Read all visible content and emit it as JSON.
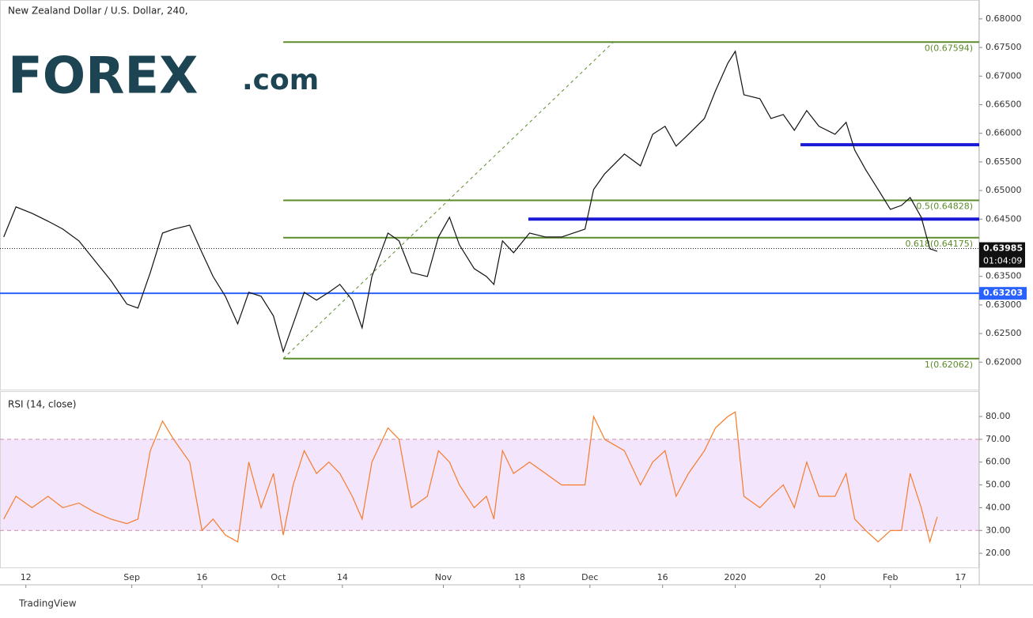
{
  "chart_data": [
    {
      "type": "line",
      "title": "New Zealand Dollar / U.S. Dollar, 240,",
      "color": "#111111",
      "x": [
        -17,
        -7,
        6,
        19,
        31,
        44,
        57,
        70,
        83,
        92,
        102,
        112,
        121,
        134,
        144,
        153,
        163,
        173,
        182,
        192,
        202,
        210,
        218,
        227,
        237,
        247,
        256,
        266,
        274,
        282,
        295,
        304,
        314,
        327,
        336,
        345,
        353,
        365,
        375,
        381,
        388,
        397,
        410,
        423,
        436,
        455,
        462,
        471,
        487,
        500,
        510,
        520,
        529,
        539,
        552,
        561,
        571,
        577,
        584,
        597,
        606,
        616,
        625,
        635,
        645,
        658,
        667,
        674,
        683,
        693,
        703,
        712,
        719,
        728,
        735,
        741
      ],
      "values": [
        0.64188,
        0.64713,
        0.64602,
        0.64464,
        0.64326,
        0.64119,
        0.63773,
        0.63428,
        0.63014,
        0.62945,
        0.63566,
        0.64257,
        0.64326,
        0.64395,
        0.63912,
        0.63497,
        0.63152,
        0.62669,
        0.63221,
        0.63152,
        0.62807,
        0.62185,
        0.62669,
        0.63221,
        0.63083,
        0.63221,
        0.63359,
        0.63083,
        0.626,
        0.63497,
        0.64257,
        0.64119,
        0.63566,
        0.63497,
        0.64188,
        0.64533,
        0.6405,
        0.63635,
        0.63497,
        0.63359,
        0.64119,
        0.63912,
        0.64257,
        0.64188,
        0.64188,
        0.64326,
        0.65017,
        0.65293,
        0.65638,
        0.65431,
        0.65983,
        0.66122,
        0.65776,
        0.65983,
        0.6626,
        0.66743,
        0.67227,
        0.67434,
        0.66674,
        0.66605,
        0.6626,
        0.66329,
        0.66052,
        0.66398,
        0.66122,
        0.65983,
        0.66191,
        0.65707,
        0.65362,
        0.65017,
        0.64671,
        0.6474,
        0.64878,
        0.64533,
        0.63981,
        0.63939
      ],
      "xlim": [
        -20,
        775.1
      ],
      "xticks": [
        {
          "value": 1,
          "label": "12"
        },
        {
          "value": 87,
          "label": "Sep"
        },
        {
          "value": 144,
          "label": "16"
        },
        {
          "value": 206,
          "label": "Oct"
        },
        {
          "value": 258,
          "label": "14"
        },
        {
          "value": 340,
          "label": "Nov"
        },
        {
          "value": 402,
          "label": "18"
        },
        {
          "value": 459,
          "label": "Dec"
        },
        {
          "value": 518,
          "label": "16"
        },
        {
          "value": 577,
          "label": "2020"
        },
        {
          "value": 646,
          "label": "20"
        },
        {
          "value": 703,
          "label": "Feb"
        },
        {
          "value": 760,
          "label": "17"
        }
      ],
      "ylim": [
        0.6152,
        0.6833
      ],
      "yticks": [
        {
          "value": 0.62,
          "label": "0.62000"
        },
        {
          "value": 0.625,
          "label": "0.62500"
        },
        {
          "value": 0.63,
          "label": "0.63000"
        },
        {
          "value": 0.635,
          "label": "0.63500"
        },
        {
          "value": 0.64,
          "label": "0.64000"
        },
        {
          "value": 0.645,
          "label": "0.64500"
        },
        {
          "value": 0.65,
          "label": "0.65000"
        },
        {
          "value": 0.655,
          "label": "0.65500"
        },
        {
          "value": 0.66,
          "label": "0.66000"
        },
        {
          "value": 0.665,
          "label": "0.66500"
        },
        {
          "value": 0.67,
          "label": "0.67000"
        },
        {
          "value": 0.675,
          "label": "0.67500"
        },
        {
          "value": 0.68,
          "label": "0.68000"
        }
      ],
      "grid": false,
      "fib_start": 210,
      "fib_color": "#5b8c2a",
      "fib_levels": [
        {
          "value": 0.67594,
          "label": "0(0.67594)"
        },
        {
          "value": 0.64828,
          "label": "0.5(0.64828)"
        },
        {
          "value": 0.64175,
          "label": "0.618(0.64175)"
        },
        {
          "value": 0.62062,
          "label": "1(0.62062)"
        }
      ],
      "trendline": {
        "x": [
          210,
          478
        ],
        "y": [
          0.62062,
          0.67594
        ]
      },
      "support": {
        "value": 0.63203,
        "label": "0.63203",
        "color": "#2962ff"
      },
      "resistance": [
        {
          "value": 0.645,
          "x": 409
        },
        {
          "value": 0.658,
          "x": 630
        }
      ],
      "resistance_color": "#1a1ad6",
      "last_price": {
        "value": 0.63985,
        "label": "0.63985",
        "timer": "01:04:09"
      }
    },
    {
      "type": "line",
      "title": "RSI (14, close)",
      "color": "#f57c2c",
      "x": [
        -17,
        -7,
        6,
        19,
        31,
        44,
        57,
        70,
        83,
        92,
        102,
        112,
        121,
        134,
        144,
        153,
        163,
        173,
        182,
        192,
        202,
        210,
        218,
        227,
        237,
        247,
        256,
        266,
        274,
        282,
        295,
        304,
        314,
        327,
        336,
        345,
        353,
        365,
        375,
        381,
        388,
        397,
        410,
        423,
        436,
        455,
        462,
        471,
        487,
        500,
        510,
        520,
        529,
        539,
        552,
        561,
        571,
        577,
        584,
        597,
        606,
        616,
        625,
        635,
        645,
        658,
        667,
        674,
        683,
        693,
        703,
        712,
        719,
        728,
        735,
        741
      ],
      "values": [
        35,
        45,
        40,
        45,
        40,
        42,
        38,
        35,
        33,
        35,
        65,
        78,
        70,
        60,
        30,
        35,
        28,
        25,
        60,
        40,
        55,
        28,
        50,
        65,
        55,
        60,
        55,
        45,
        35,
        60,
        75,
        70,
        40,
        45,
        65,
        60,
        50,
        40,
        45,
        35,
        65,
        55,
        60,
        55,
        50,
        50,
        80,
        70,
        65,
        50,
        60,
        65,
        45,
        55,
        65,
        75,
        80,
        82,
        45,
        40,
        45,
        50,
        40,
        60,
        45,
        45,
        55,
        35,
        30,
        25,
        30,
        30,
        55,
        40,
        25,
        36
      ],
      "xlim": [
        -20,
        775.1
      ],
      "ylim": [
        13.8,
        91.1
      ],
      "yticks": [
        {
          "value": 20,
          "label": "20.00"
        },
        {
          "value": 30,
          "label": "30.00"
        },
        {
          "value": 40,
          "label": "40.00"
        },
        {
          "value": 50,
          "label": "50.00"
        },
        {
          "value": 60,
          "label": "60.00"
        },
        {
          "value": 70,
          "label": "70.00"
        },
        {
          "value": 80,
          "label": "80.00"
        }
      ],
      "band": [
        30,
        70
      ],
      "band_color": "#f3e5fb"
    }
  ],
  "logo": "FOREX",
  "logo_suffix": ".com",
  "footer": "TradingView"
}
